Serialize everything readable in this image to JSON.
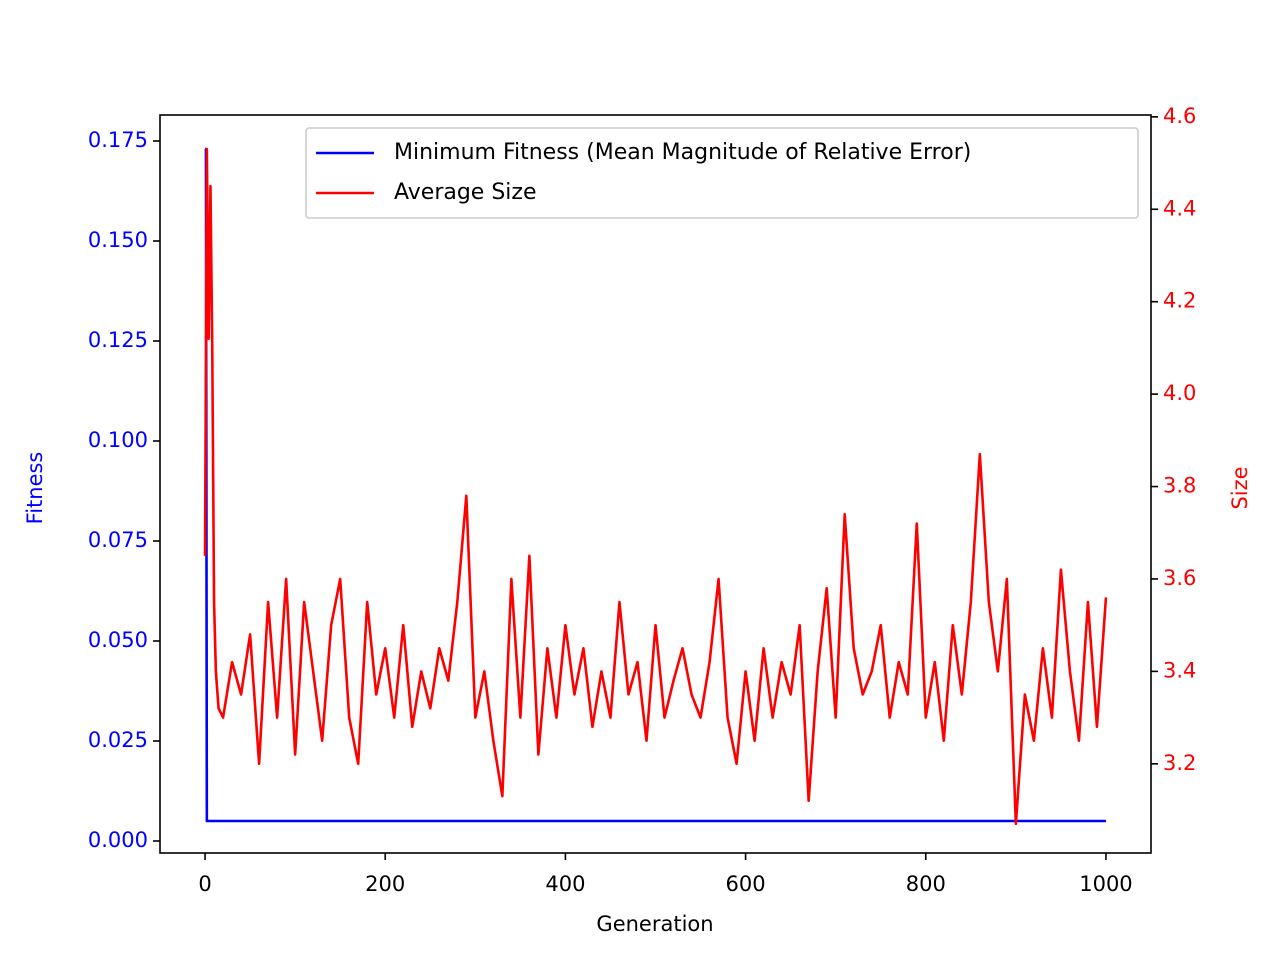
{
  "chart_data": {
    "type": "line",
    "xlabel": "Generation",
    "ylabel": "Fitness",
    "y2label": "Size",
    "xlim": [
      -50,
      1050
    ],
    "xticks": [
      0,
      200,
      400,
      600,
      800,
      1000
    ],
    "ylim": [
      -0.003,
      0.1815
    ],
    "yticks": [
      {
        "value": 0,
        "label": "0.000"
      },
      0.025,
      {
        "value": 0.05,
        "label": "0.050"
      },
      0.075,
      {
        "value": 0.1,
        "label": "0.100"
      },
      0.125,
      {
        "value": 0.15,
        "label": "0.150"
      },
      0.175
    ],
    "y2lim": [
      3.007,
      4.604
    ],
    "y2ticks": [
      3.2,
      3.4,
      3.6,
      3.8,
      {
        "value": 4,
        "label": "4.0"
      },
      4.2,
      4.4,
      4.6
    ],
    "legend": "upper right",
    "series": [
      {
        "name": "Minimum Fitness (Mean Magnitude of Relative Error)",
        "color": "#0000ff",
        "axis": "y",
        "x": [
          0,
          1,
          2,
          1000
        ],
        "values": [
          0.173,
          0.173,
          0.005,
          0.005
        ]
      },
      {
        "name": "Average Size",
        "color": "#ff0000",
        "axis": "y2",
        "x": [
          0,
          2,
          4,
          6,
          8,
          10,
          12,
          15,
          20,
          30,
          40,
          50,
          60,
          70,
          80,
          90,
          100,
          110,
          120,
          130,
          140,
          150,
          160,
          170,
          180,
          190,
          200,
          210,
          220,
          230,
          240,
          250,
          260,
          270,
          280,
          290,
          300,
          310,
          320,
          330,
          340,
          350,
          360,
          370,
          380,
          390,
          400,
          410,
          420,
          430,
          440,
          450,
          460,
          470,
          480,
          490,
          500,
          510,
          520,
          530,
          540,
          550,
          560,
          570,
          580,
          590,
          600,
          610,
          620,
          630,
          640,
          650,
          660,
          670,
          680,
          690,
          700,
          710,
          720,
          730,
          740,
          750,
          760,
          770,
          780,
          790,
          800,
          810,
          820,
          830,
          840,
          850,
          860,
          870,
          880,
          890,
          900,
          910,
          920,
          930,
          940,
          950,
          960,
          970,
          980,
          990,
          1000
        ],
        "values": [
          3.65,
          4.53,
          4.12,
          4.45,
          4.1,
          3.55,
          3.4,
          3.32,
          3.3,
          3.42,
          3.35,
          3.48,
          3.2,
          3.55,
          3.3,
          3.6,
          3.22,
          3.55,
          3.4,
          3.25,
          3.5,
          3.6,
          3.3,
          3.2,
          3.55,
          3.35,
          3.45,
          3.3,
          3.5,
          3.28,
          3.4,
          3.32,
          3.45,
          3.38,
          3.55,
          3.78,
          3.3,
          3.4,
          3.25,
          3.13,
          3.6,
          3.3,
          3.65,
          3.22,
          3.45,
          3.3,
          3.5,
          3.35,
          3.45,
          3.28,
          3.4,
          3.3,
          3.55,
          3.35,
          3.42,
          3.25,
          3.5,
          3.3,
          3.38,
          3.45,
          3.35,
          3.3,
          3.42,
          3.6,
          3.3,
          3.2,
          3.4,
          3.25,
          3.45,
          3.3,
          3.42,
          3.35,
          3.5,
          3.12,
          3.4,
          3.58,
          3.3,
          3.74,
          3.45,
          3.35,
          3.4,
          3.5,
          3.3,
          3.42,
          3.35,
          3.72,
          3.3,
          3.42,
          3.25,
          3.5,
          3.35,
          3.55,
          3.87,
          3.55,
          3.4,
          3.6,
          3.07,
          3.35,
          3.25,
          3.45,
          3.3,
          3.62,
          3.4,
          3.25,
          3.55,
          3.28,
          3.56
        ]
      }
    ]
  }
}
